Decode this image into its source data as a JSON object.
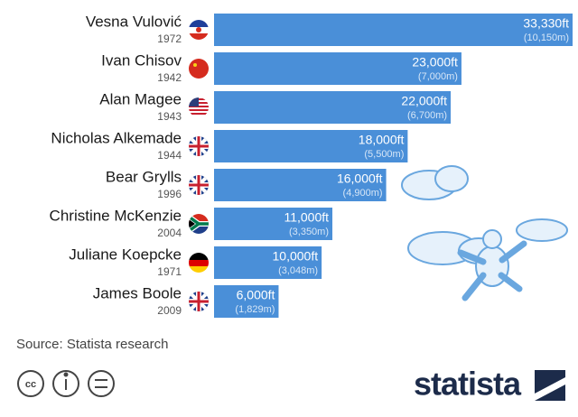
{
  "chart_data": {
    "type": "bar",
    "orientation": "horizontal",
    "categories": [
      "Vesna Vulović",
      "Ivan Chisov",
      "Alan Magee",
      "Nicholas Alkemade",
      "Bear Grylls",
      "Christine McKenzie",
      "Juliane Koepcke",
      "James Boole"
    ],
    "years": [
      "1972",
      "1942",
      "1943",
      "1944",
      "1996",
      "2004",
      "1971",
      "2009"
    ],
    "values": [
      33330,
      23000,
      22000,
      18000,
      16000,
      11000,
      10000,
      6000
    ],
    "value_labels": [
      "33,330ft",
      "23,000ft",
      "22,000ft",
      "18,000ft",
      "16,000ft",
      "11,000ft",
      "10,000ft",
      "6,000ft"
    ],
    "meter_labels": [
      "(10,150m)",
      "(7,000m)",
      "(6,700m)",
      "(5,500m)",
      "(4,900m)",
      "(3,350m)",
      "(3,048m)",
      "(1,829m)"
    ],
    "color": "#4a8fd8",
    "xlim": [
      0,
      33330
    ],
    "source": "Source: Statista research",
    "brand": "statista"
  }
}
